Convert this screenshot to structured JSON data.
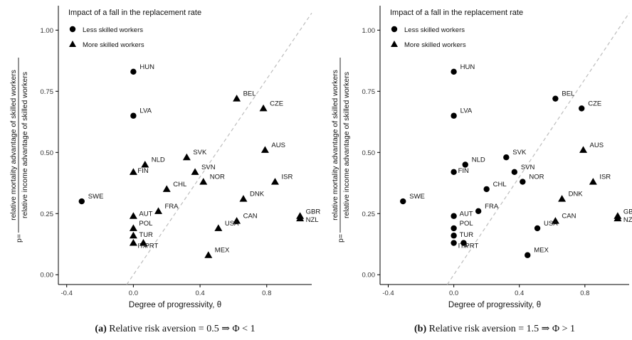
{
  "legend": {
    "title": "Impact of a fall in the replacement rate",
    "entries": [
      "Less skilled workers",
      "More skilled workers"
    ]
  },
  "xlabel": "Degree of progressivity, θ",
  "ylabel": {
    "prefix": "p=",
    "numerator": "relative mortality advantage of skilled workers",
    "denominator": "relative income advantage of skilled workers"
  },
  "chart_data": [
    {
      "type": "scatter",
      "caption_letter": "(a)",
      "caption": "Relative risk aversion = 0.5 ⇒ Φ < 1",
      "xlim": [
        -0.45,
        1.07
      ],
      "ylim": [
        -0.04,
        1.1
      ],
      "xticks": [
        -0.4,
        0.0,
        0.4,
        0.8
      ],
      "xtick_labels": [
        "-0.4",
        "0.0",
        "0.4",
        "0.8"
      ],
      "yticks": [
        0.0,
        0.25,
        0.5,
        0.75,
        1.0
      ],
      "ytick_labels": [
        "0.00",
        "0.25",
        "0.50",
        "0.75",
        "1.00"
      ],
      "reference_line": "45-degree dashed",
      "points": [
        {
          "label": "HUN",
          "x": 0.0,
          "y": 0.83,
          "group": "Less skilled workers"
        },
        {
          "label": "LVA",
          "x": 0.0,
          "y": 0.65,
          "group": "Less skilled workers"
        },
        {
          "label": "SWE",
          "x": -0.31,
          "y": 0.3,
          "group": "Less skilled workers"
        },
        {
          "label": "BEL",
          "x": 0.62,
          "y": 0.72,
          "group": "More skilled workers"
        },
        {
          "label": "CZE",
          "x": 0.78,
          "y": 0.68,
          "group": "More skilled workers"
        },
        {
          "label": "AUS",
          "x": 0.79,
          "y": 0.51,
          "group": "More skilled workers"
        },
        {
          "label": "SVK",
          "x": 0.32,
          "y": 0.48,
          "group": "More skilled workers"
        },
        {
          "label": "NLD",
          "x": 0.07,
          "y": 0.45,
          "group": "More skilled workers"
        },
        {
          "label": "FIN",
          "x": 0.0,
          "y": 0.42,
          "group": "More skilled workers"
        },
        {
          "label": "SVN",
          "x": 0.37,
          "y": 0.42,
          "group": "More skilled workers"
        },
        {
          "label": "NOR",
          "x": 0.42,
          "y": 0.38,
          "group": "More skilled workers"
        },
        {
          "label": "ISR",
          "x": 0.85,
          "y": 0.38,
          "group": "More skilled workers"
        },
        {
          "label": "CHL",
          "x": 0.2,
          "y": 0.35,
          "group": "More skilled workers"
        },
        {
          "label": "DNK",
          "x": 0.66,
          "y": 0.31,
          "group": "More skilled workers"
        },
        {
          "label": "FRA",
          "x": 0.15,
          "y": 0.26,
          "group": "More skilled workers"
        },
        {
          "label": "AUT",
          "x": 0.0,
          "y": 0.24,
          "group": "More skilled workers"
        },
        {
          "label": "GBR",
          "x": 1.0,
          "y": 0.24,
          "group": "More skilled workers"
        },
        {
          "label": "NZL",
          "x": 1.0,
          "y": 0.23,
          "group": "More skilled workers"
        },
        {
          "label": "CAN",
          "x": 0.62,
          "y": 0.22,
          "group": "More skilled workers"
        },
        {
          "label": "USA",
          "x": 0.51,
          "y": 0.19,
          "group": "More skilled workers"
        },
        {
          "label": "POL",
          "x": 0.0,
          "y": 0.19,
          "group": "More skilled workers"
        },
        {
          "label": "TUR",
          "x": 0.0,
          "y": 0.16,
          "group": "More skilled workers"
        },
        {
          "label": "ITA",
          "x": 0.0,
          "y": 0.13,
          "group": "More skilled workers"
        },
        {
          "label": "PRT",
          "x": 0.06,
          "y": 0.13,
          "group": "More skilled workers"
        },
        {
          "label": "MEX",
          "x": 0.45,
          "y": 0.08,
          "group": "More skilled workers"
        }
      ]
    },
    {
      "type": "scatter",
      "caption_letter": "(b)",
      "caption": "Relative risk aversion = 1.5 ⇒ Φ > 1",
      "xlim": [
        -0.45,
        1.07
      ],
      "ylim": [
        -0.04,
        1.1
      ],
      "xticks": [
        -0.4,
        0.0,
        0.4,
        0.8
      ],
      "xtick_labels": [
        "-0.4",
        "0.0",
        "0.4",
        "0.8"
      ],
      "yticks": [
        0.0,
        0.25,
        0.5,
        0.75,
        1.0
      ],
      "ytick_labels": [
        "0.00",
        "0.25",
        "0.50",
        "0.75",
        "1.00"
      ],
      "reference_line": "45-degree dashed",
      "points": [
        {
          "label": "HUN",
          "x": 0.0,
          "y": 0.83,
          "group": "Less skilled workers"
        },
        {
          "label": "LVA",
          "x": 0.0,
          "y": 0.65,
          "group": "Less skilled workers"
        },
        {
          "label": "SWE",
          "x": -0.31,
          "y": 0.3,
          "group": "Less skilled workers"
        },
        {
          "label": "BEL",
          "x": 0.62,
          "y": 0.72,
          "group": "Less skilled workers"
        },
        {
          "label": "CZE",
          "x": 0.78,
          "y": 0.68,
          "group": "Less skilled workers"
        },
        {
          "label": "AUS",
          "x": 0.79,
          "y": 0.51,
          "group": "More skilled workers"
        },
        {
          "label": "SVK",
          "x": 0.32,
          "y": 0.48,
          "group": "Less skilled workers"
        },
        {
          "label": "NLD",
          "x": 0.07,
          "y": 0.45,
          "group": "Less skilled workers"
        },
        {
          "label": "FIN",
          "x": 0.0,
          "y": 0.42,
          "group": "Less skilled workers"
        },
        {
          "label": "SVN",
          "x": 0.37,
          "y": 0.42,
          "group": "Less skilled workers"
        },
        {
          "label": "NOR",
          "x": 0.42,
          "y": 0.38,
          "group": "Less skilled workers"
        },
        {
          "label": "ISR",
          "x": 0.85,
          "y": 0.38,
          "group": "More skilled workers"
        },
        {
          "label": "CHL",
          "x": 0.2,
          "y": 0.35,
          "group": "Less skilled workers"
        },
        {
          "label": "DNK",
          "x": 0.66,
          "y": 0.31,
          "group": "More skilled workers"
        },
        {
          "label": "FRA",
          "x": 0.15,
          "y": 0.26,
          "group": "Less skilled workers"
        },
        {
          "label": "AUT",
          "x": 0.0,
          "y": 0.24,
          "group": "Less skilled workers"
        },
        {
          "label": "GBR",
          "x": 1.0,
          "y": 0.24,
          "group": "More skilled workers"
        },
        {
          "label": "NZL",
          "x": 1.0,
          "y": 0.23,
          "group": "More skilled workers"
        },
        {
          "label": "CAN",
          "x": 0.62,
          "y": 0.22,
          "group": "More skilled workers"
        },
        {
          "label": "USA",
          "x": 0.51,
          "y": 0.19,
          "group": "Less skilled workers"
        },
        {
          "label": "POL",
          "x": 0.0,
          "y": 0.19,
          "group": "Less skilled workers"
        },
        {
          "label": "TUR",
          "x": 0.0,
          "y": 0.16,
          "group": "Less skilled workers"
        },
        {
          "label": "ITA",
          "x": 0.0,
          "y": 0.13,
          "group": "Less skilled workers"
        },
        {
          "label": "PRT",
          "x": 0.06,
          "y": 0.13,
          "group": "Less skilled workers"
        },
        {
          "label": "MEX",
          "x": 0.45,
          "y": 0.08,
          "group": "Less skilled workers"
        }
      ]
    }
  ]
}
